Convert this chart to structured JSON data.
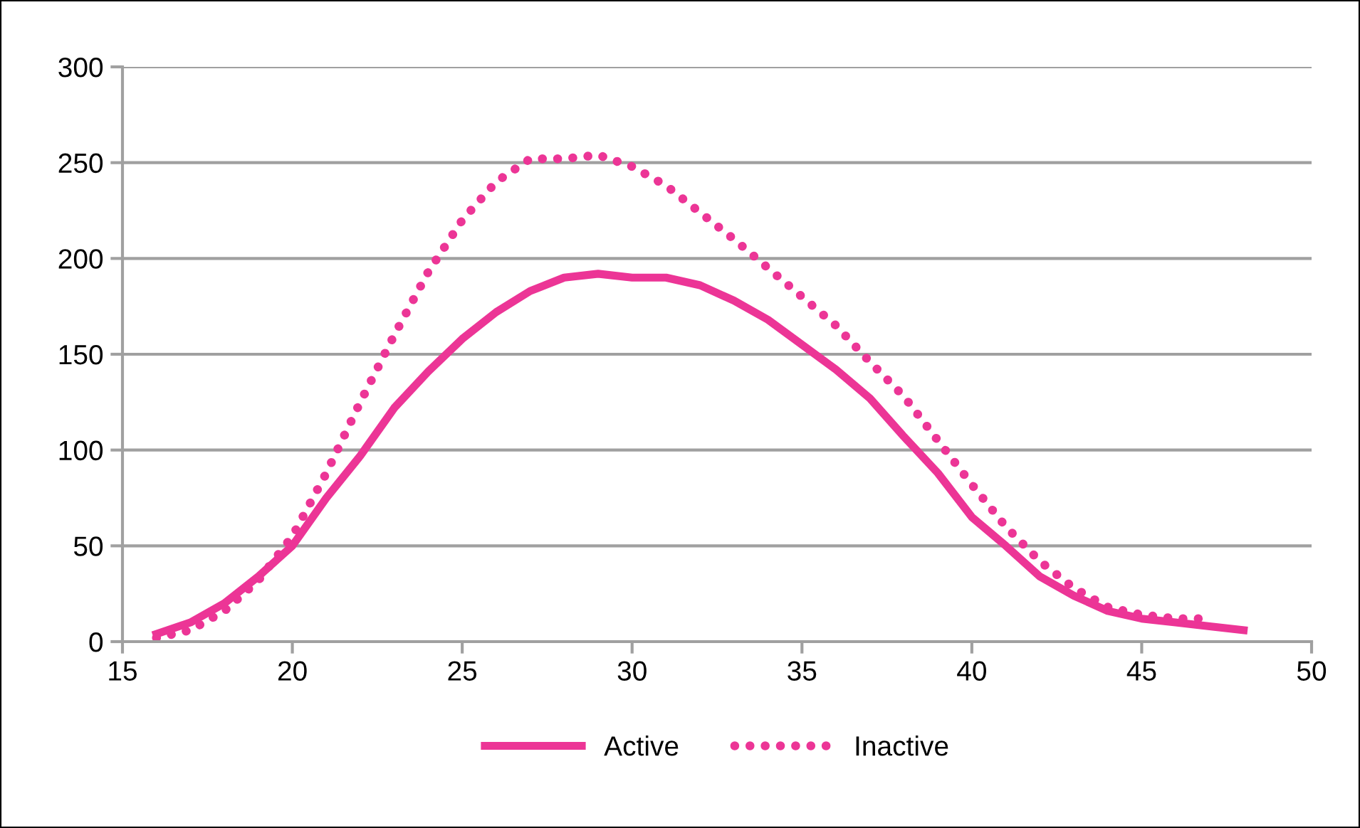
{
  "chart_data": {
    "type": "line",
    "x": [
      16,
      17,
      18,
      19,
      20,
      21,
      22,
      23,
      24,
      25,
      26,
      27,
      28,
      29,
      30,
      31,
      32,
      33,
      34,
      35,
      36,
      37,
      38,
      39,
      40,
      41,
      42,
      43,
      44,
      45,
      46,
      47,
      48
    ],
    "series": [
      {
        "name": "Active",
        "color": "#ec3596",
        "line_style": "solid",
        "values": [
          4,
          10,
          20,
          34,
          50,
          75,
          97,
          122,
          141,
          158,
          172,
          183,
          190,
          192,
          190,
          190,
          186,
          178,
          168,
          155,
          142,
          127,
          107,
          88,
          65,
          50,
          34,
          24,
          16,
          12,
          10,
          8,
          6
        ]
      },
      {
        "name": "Inactive",
        "color": "#ec3596",
        "line_style": "dotted",
        "values": [
          2,
          6,
          16,
          32,
          55,
          88,
          125,
          160,
          193,
          220,
          240,
          252,
          252,
          254,
          248,
          238,
          224,
          210,
          195,
          180,
          165,
          146,
          128,
          105,
          82,
          60,
          42,
          28,
          18,
          14,
          12,
          12,
          null
        ]
      }
    ],
    "xlim": [
      15,
      50
    ],
    "xticks": [
      15,
      20,
      25,
      30,
      35,
      40,
      45,
      50
    ],
    "ylim": [
      0,
      300
    ],
    "yticks": [
      0,
      50,
      100,
      150,
      200,
      250,
      300
    ],
    "grid": "y",
    "legend": "bottom",
    "marker": "none"
  }
}
